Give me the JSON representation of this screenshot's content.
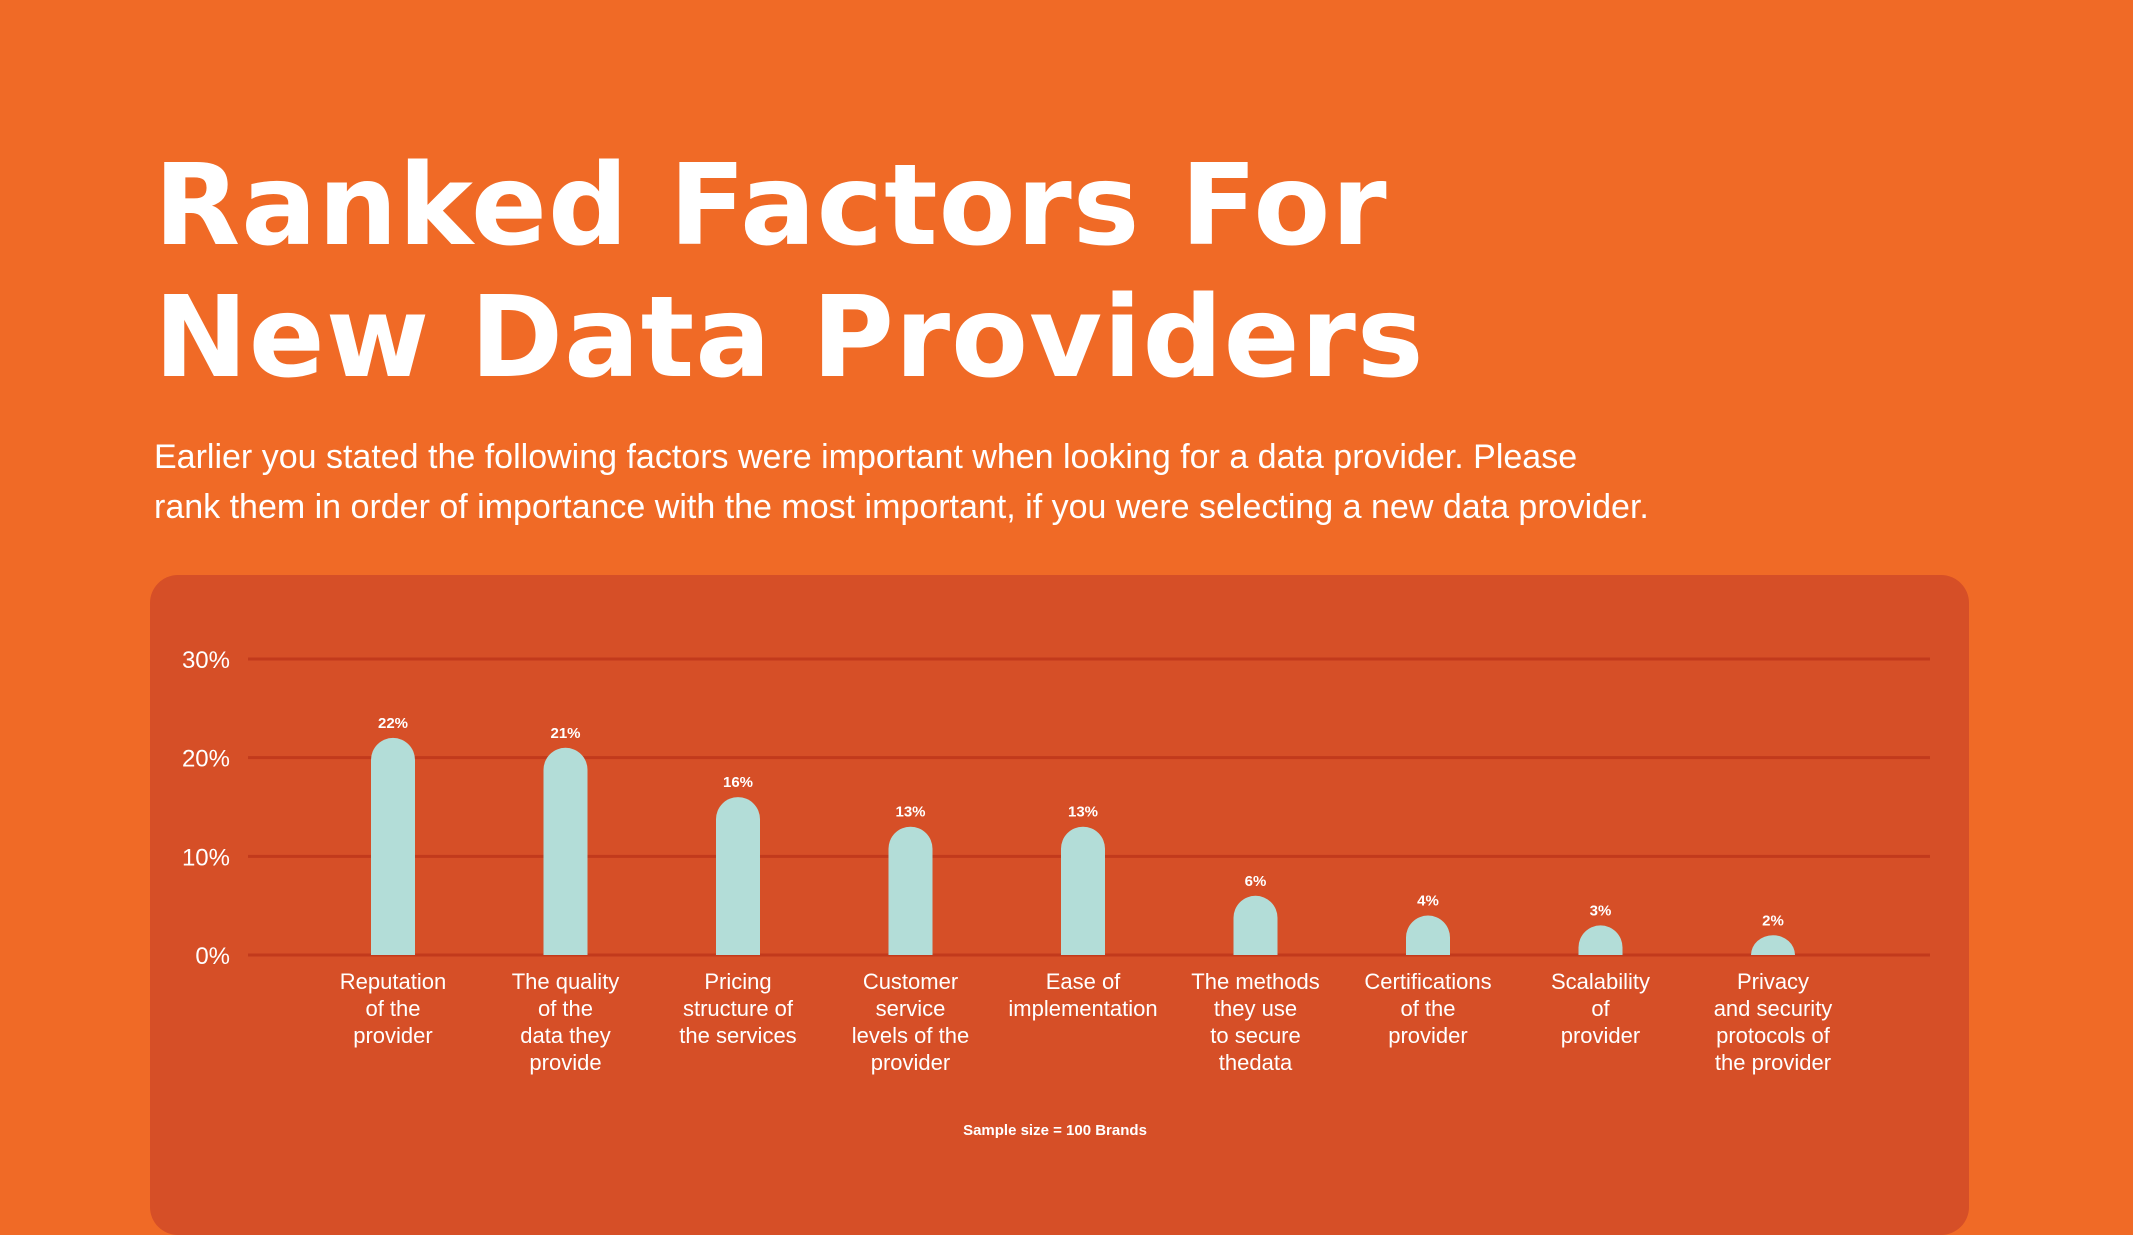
{
  "title": {
    "line1": "Ranked Factors For",
    "line2": "New Data Providers"
  },
  "subtitle": {
    "line1": "Earlier you stated the following factors were important when looking for a data provider. Please",
    "line2": "rank them in order of importance with the most important, if you were selecting a new data provider."
  },
  "footnote": "Sample size = 100 Brands",
  "colors": {
    "background": "#F06A26",
    "panel": "#D64F27",
    "bar": "#B3DDD8",
    "grid": "#C23A1C",
    "text": "#FFFFFF"
  },
  "chart_data": {
    "type": "bar",
    "title": "Ranked Factors For New Data Providers",
    "ylim": [
      0,
      30
    ],
    "yticks": [
      "0%",
      "10%",
      "20%",
      "30%"
    ],
    "grid": true,
    "categories": [
      [
        "Reputation",
        "of the",
        "provider"
      ],
      [
        "The quality",
        "of the",
        "data they",
        "provide"
      ],
      [
        "Pricing",
        "structure of",
        "the services"
      ],
      [
        "Customer",
        "service",
        "levels of the",
        "provider"
      ],
      [
        "Ease of",
        "implementation"
      ],
      [
        "The methods",
        "they use",
        "to secure",
        "thedata"
      ],
      [
        "Certifications",
        "of the",
        "provider"
      ],
      [
        "Scalability",
        "of",
        "provider"
      ],
      [
        "Privacy",
        "and security",
        "protocols of",
        "the provider"
      ]
    ],
    "values": [
      22,
      21,
      16,
      13,
      13,
      6,
      4,
      3,
      2
    ],
    "value_labels": [
      "22%",
      "21%",
      "16%",
      "13%",
      "13%",
      "6%",
      "4%",
      "3%",
      "2%"
    ]
  }
}
